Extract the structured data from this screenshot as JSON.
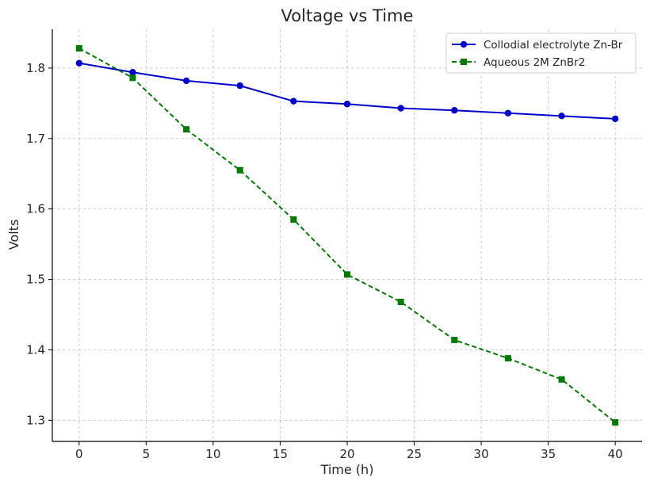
{
  "chart_data": {
    "type": "line",
    "title": "Voltage vs Time",
    "xlabel": "Time (h)",
    "ylabel": "Volts",
    "xlim": [
      -2,
      42
    ],
    "ylim": [
      1.27,
      1.855
    ],
    "xticks": [
      0,
      5,
      10,
      15,
      20,
      25,
      30,
      35,
      40
    ],
    "yticks": [
      1.3,
      1.4,
      1.5,
      1.6,
      1.7,
      1.8
    ],
    "xtick_labels": [
      "0",
      "5",
      "10",
      "15",
      "20",
      "25",
      "30",
      "35",
      "40"
    ],
    "ytick_labels": [
      "1.3",
      "1.4",
      "1.5",
      "1.6",
      "1.7",
      "1.8"
    ],
    "grid": true,
    "legend_position": "top-right",
    "x": [
      0,
      4,
      8,
      12,
      16,
      20,
      24,
      28,
      32,
      36,
      40
    ],
    "series": [
      {
        "name": "Collodial electrolyte Zn-Br",
        "color": "#0000cc",
        "line_style": "solid",
        "marker": "circle",
        "values": [
          1.807,
          1.794,
          1.782,
          1.775,
          1.753,
          1.749,
          1.743,
          1.74,
          1.736,
          1.732,
          1.728
        ]
      },
      {
        "name": "Aqueous 2M ZnBr2",
        "color": "#007a00",
        "line_style": "dashed",
        "marker": "square",
        "values": [
          1.828,
          1.786,
          1.713,
          1.655,
          1.585,
          1.507,
          1.468,
          1.414,
          1.388,
          1.358,
          1.297
        ]
      }
    ]
  }
}
